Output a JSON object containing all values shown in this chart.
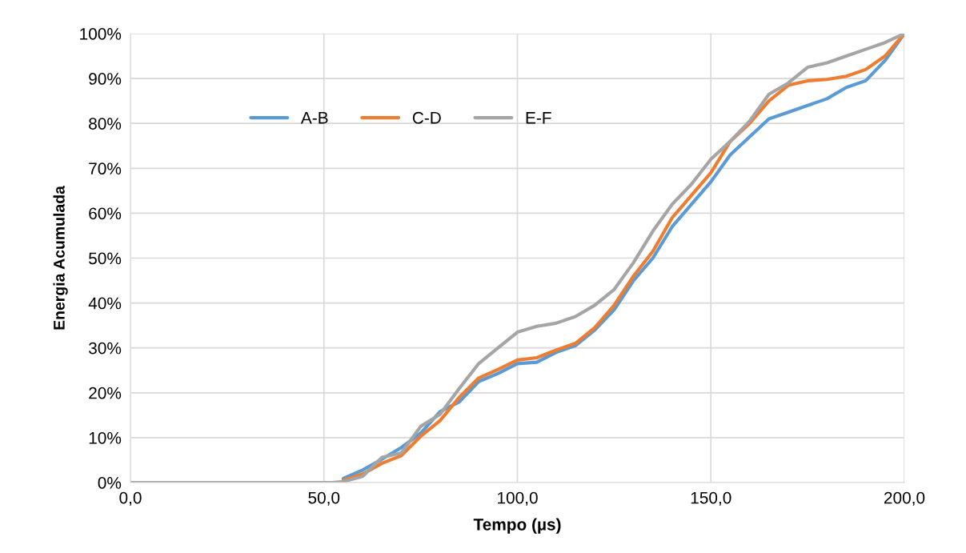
{
  "chart_data": {
    "type": "line",
    "xlabel": "Tempo (µs)",
    "ylabel": "Energia Acumulada",
    "x": [
      0,
      52,
      55,
      60,
      65,
      70,
      75,
      80,
      85,
      90,
      95,
      100,
      105,
      110,
      115,
      120,
      125,
      130,
      135,
      140,
      145,
      150,
      155,
      160,
      165,
      170,
      175,
      180,
      185,
      190,
      195,
      200
    ],
    "series": [
      {
        "name": "A-B",
        "color": "#5b9bd5",
        "values": [
          null,
          null,
          0.9,
          2.8,
          5.2,
          7.8,
          11,
          15.8,
          18,
          22.5,
          24.3,
          26.5,
          26.8,
          29,
          30.5,
          34,
          38.5,
          45,
          50,
          57,
          62,
          67,
          73,
          77,
          81,
          82.5,
          84,
          85.5,
          88,
          89.5,
          94,
          100
        ]
      },
      {
        "name": "C-D",
        "color": "#ed7d31",
        "values": [
          null,
          null,
          0.5,
          1.9,
          4.3,
          6,
          10.3,
          13.8,
          19,
          23.3,
          25.2,
          27.3,
          27.8,
          29.5,
          31,
          34.5,
          39.5,
          46,
          51.5,
          59,
          64,
          69,
          76,
          80,
          85,
          88.5,
          89.5,
          89.8,
          90.5,
          92,
          95,
          100
        ]
      },
      {
        "name": "E-F",
        "color": "#a5a5a5",
        "values": [
          0,
          0,
          0.2,
          1.4,
          5.6,
          6.6,
          12.5,
          15.2,
          21,
          26.5,
          30,
          33.5,
          34.8,
          35.5,
          37,
          39.5,
          43,
          49,
          56,
          62,
          66.5,
          72,
          76,
          80.5,
          86.5,
          89,
          92.5,
          93.5,
          95,
          96.5,
          98,
          100
        ]
      }
    ],
    "xlim": [
      0,
      200
    ],
    "xticks": [
      {
        "value": 0,
        "label": "0,0"
      },
      {
        "value": 50,
        "label": "50,0"
      },
      {
        "value": 100,
        "label": "100,0"
      },
      {
        "value": 150,
        "label": "150,0"
      },
      {
        "value": 200,
        "label": "200,0"
      }
    ],
    "ylim": [
      0,
      100
    ],
    "yticks": [
      {
        "value": 0,
        "label": "0%"
      },
      {
        "value": 10,
        "label": "10%"
      },
      {
        "value": 20,
        "label": "20%"
      },
      {
        "value": 30,
        "label": "30%"
      },
      {
        "value": 40,
        "label": "40%"
      },
      {
        "value": 50,
        "label": "50%"
      },
      {
        "value": 60,
        "label": "60%"
      },
      {
        "value": 70,
        "label": "70%"
      },
      {
        "value": 80,
        "label": "80%"
      },
      {
        "value": 90,
        "label": "90%"
      },
      {
        "value": 100,
        "label": "100%"
      }
    ],
    "grid": true,
    "legend": "top",
    "marker": "none",
    "line_style": "solid"
  }
}
